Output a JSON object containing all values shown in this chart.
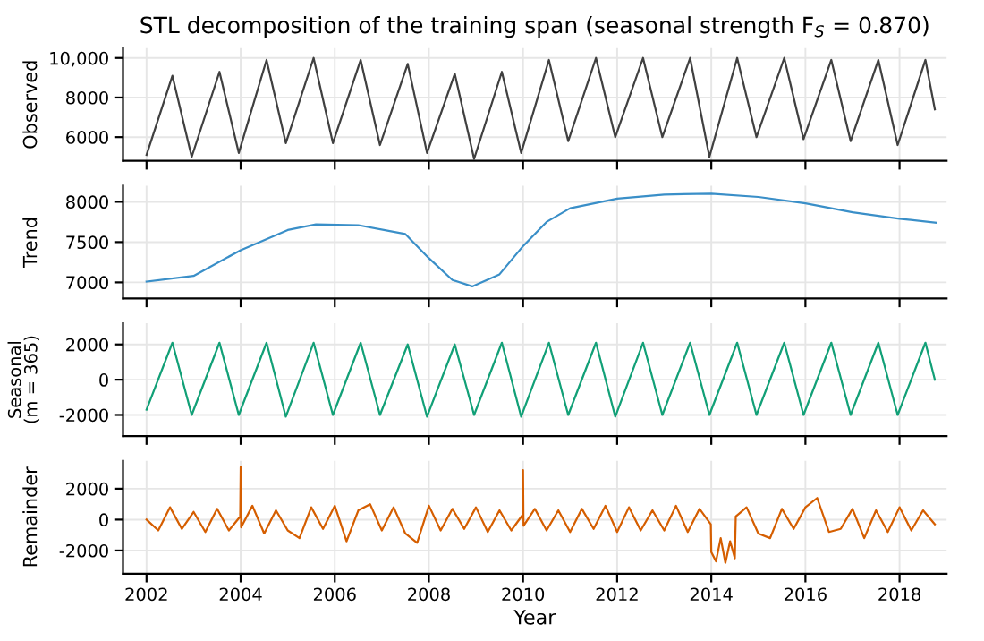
{
  "chart_data": [
    {
      "type": "line",
      "title": "STL decomposition of the training span (seasonal strength F$_{S}$ = 0.870)",
      "ylabel": "Observed",
      "tick_labels": "y",
      "grid": true,
      "xlim": [
        2001.5,
        2019
      ],
      "xticks": [
        2002,
        2004,
        2006,
        2008,
        2010,
        2012,
        2014,
        2016,
        2018
      ],
      "ylim": [
        4800,
        10500
      ],
      "yticks": [
        6000,
        8000,
        {
          "value": 10000,
          "label": "10,000"
        }
      ],
      "series": [
        {
          "color": "#404040",
          "x": [
            2002.0,
            2002.55,
            2002.96,
            2003.55,
            2003.96,
            2004.55,
            2004.96,
            2005.55,
            2005.96,
            2006.55,
            2006.96,
            2007.55,
            2007.96,
            2008.55,
            2008.96,
            2009.55,
            2009.96,
            2010.55,
            2010.96,
            2011.55,
            2011.96,
            2012.55,
            2012.96,
            2013.55,
            2013.96,
            2014.55,
            2014.96,
            2015.55,
            2015.96,
            2016.55,
            2016.96,
            2017.55,
            2017.96,
            2018.55,
            2018.75
          ],
          "values": [
            5100,
            9100,
            5000,
            9300,
            5200,
            9900,
            5700,
            10000,
            5700,
            9900,
            5600,
            9700,
            5200,
            9200,
            4900,
            9300,
            5200,
            9900,
            5800,
            10000,
            6000,
            10000,
            6000,
            10000,
            5000,
            10000,
            6000,
            10000,
            5900,
            9900,
            5800,
            9900,
            5600,
            9900,
            7400
          ]
        }
      ]
    },
    {
      "type": "line",
      "ylabel": "Trend",
      "tick_labels": "y",
      "grid": true,
      "xlim": [
        2001.5,
        2019
      ],
      "xticks": [
        2002,
        2004,
        2006,
        2008,
        2010,
        2012,
        2014,
        2016,
        2018
      ],
      "ylim": [
        6800,
        8200
      ],
      "yticks": [
        7000,
        7500,
        8000
      ],
      "series": [
        {
          "color": "#3a8fc8",
          "x": [
            2002.0,
            2003.0,
            2004.0,
            2005.0,
            2005.6,
            2006.5,
            2007.5,
            2008.0,
            2008.5,
            2008.92,
            2009.5,
            2010.0,
            2010.5,
            2011.0,
            2012.0,
            2013.0,
            2014.0,
            2015.0,
            2016.0,
            2017.0,
            2018.0,
            2018.77
          ],
          "values": [
            7010,
            7080,
            7400,
            7650,
            7720,
            7710,
            7600,
            7300,
            7030,
            6950,
            7100,
            7450,
            7750,
            7920,
            8040,
            8090,
            8100,
            8060,
            7980,
            7870,
            7790,
            7740
          ]
        }
      ]
    },
    {
      "type": "line",
      "ylabel": "Seasonal\n(m = 365)",
      "tick_labels": "y",
      "grid": true,
      "xlim": [
        2001.5,
        2019
      ],
      "xticks": [
        2002,
        2004,
        2006,
        2008,
        2010,
        2012,
        2014,
        2016,
        2018
      ],
      "ylim": [
        -3200,
        3200
      ],
      "yticks": [
        -2000,
        0,
        2000
      ],
      "series": [
        {
          "color": "#12a077",
          "x": [
            2002.0,
            2002.55,
            2002.96,
            2003.55,
            2003.96,
            2004.55,
            2004.96,
            2005.55,
            2005.96,
            2006.55,
            2006.96,
            2007.55,
            2007.96,
            2008.55,
            2008.96,
            2009.55,
            2009.96,
            2010.55,
            2010.96,
            2011.55,
            2011.96,
            2012.55,
            2012.96,
            2013.55,
            2013.96,
            2014.55,
            2014.96,
            2015.55,
            2015.96,
            2016.55,
            2016.96,
            2017.55,
            2017.96,
            2018.55,
            2018.75
          ],
          "values": [
            -1700,
            2100,
            -2000,
            2100,
            -2000,
            2100,
            -2100,
            2100,
            -2000,
            2100,
            -2000,
            2000,
            -2100,
            2000,
            -2000,
            2100,
            -2100,
            2100,
            -2000,
            2100,
            -2100,
            2100,
            -2000,
            2100,
            -2000,
            2100,
            -2000,
            2100,
            -2000,
            2100,
            -2000,
            2100,
            -2000,
            2100,
            0
          ]
        }
      ]
    },
    {
      "type": "line",
      "ylabel": "Remainder",
      "xlabel": "Year",
      "grid": true,
      "xlim": [
        2001.5,
        2019
      ],
      "xticks": [
        2002,
        2004,
        2006,
        2008,
        2010,
        2012,
        2014,
        2016,
        2018
      ],
      "ylim": [
        -3500,
        3800
      ],
      "yticks": [
        -2000,
        0,
        2000
      ],
      "series": [
        {
          "color": "#d55e00",
          "x": [
            2002.0,
            2002.25,
            2002.5,
            2002.75,
            2003.0,
            2003.25,
            2003.5,
            2003.75,
            2003.99,
            2004.0,
            2004.01,
            2004.25,
            2004.5,
            2004.75,
            2005.0,
            2005.25,
            2005.5,
            2005.75,
            2006.0,
            2006.25,
            2006.5,
            2006.75,
            2007.0,
            2007.25,
            2007.5,
            2007.75,
            2008.0,
            2008.25,
            2008.5,
            2008.75,
            2009.0,
            2009.25,
            2009.5,
            2009.75,
            2009.99,
            2010.0,
            2010.01,
            2010.25,
            2010.5,
            2010.75,
            2011.0,
            2011.25,
            2011.5,
            2011.75,
            2012.0,
            2012.25,
            2012.5,
            2012.75,
            2013.0,
            2013.25,
            2013.5,
            2013.75,
            2013.99,
            2014.0,
            2014.1,
            2014.2,
            2014.3,
            2014.4,
            2014.5,
            2014.52,
            2014.75,
            2015.0,
            2015.25,
            2015.5,
            2015.75,
            2016.0,
            2016.25,
            2016.5,
            2016.75,
            2017.0,
            2017.25,
            2017.5,
            2017.75,
            2018.0,
            2018.25,
            2018.5,
            2018.75
          ],
          "values": [
            0,
            -700,
            800,
            -600,
            500,
            -800,
            700,
            -700,
            200,
            3400,
            -500,
            900,
            -900,
            600,
            -700,
            -1200,
            800,
            -600,
            900,
            -1400,
            600,
            1000,
            -700,
            800,
            -900,
            -1500,
            900,
            -700,
            700,
            -600,
            800,
            -800,
            600,
            -700,
            300,
            3200,
            -400,
            700,
            -700,
            600,
            -800,
            700,
            -600,
            900,
            -800,
            800,
            -700,
            600,
            -700,
            900,
            -800,
            700,
            -300,
            -2100,
            -2700,
            -1200,
            -2800,
            -1400,
            -2500,
            200,
            800,
            -900,
            -1200,
            700,
            -600,
            800,
            1400,
            -800,
            -600,
            700,
            -1200,
            600,
            -800,
            800,
            -700,
            600,
            -300
          ]
        }
      ]
    }
  ]
}
